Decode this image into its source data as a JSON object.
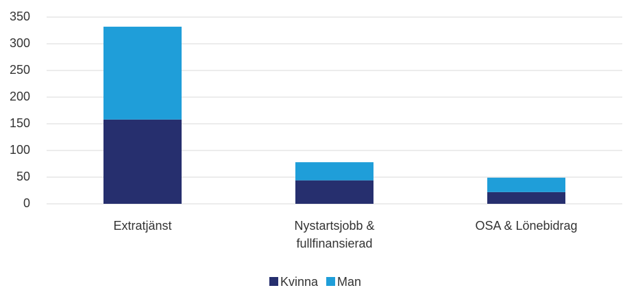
{
  "chart_data": {
    "type": "stacked_bar",
    "categories": [
      "Extratjänst",
      "Nystartsjobb & fullfinansierad",
      "OSA & Lönebidrag"
    ],
    "series": [
      {
        "name": "Kvinna",
        "color": "#262f6e",
        "values": [
          158,
          44,
          22
        ]
      },
      {
        "name": "Man",
        "color": "#1f9ed9",
        "values": [
          174,
          34,
          27
        ]
      }
    ],
    "ylim": [
      0,
      350
    ],
    "yticks": [
      0,
      50,
      100,
      150,
      200,
      250,
      300,
      350
    ],
    "grid": true,
    "legend": "bottom"
  }
}
